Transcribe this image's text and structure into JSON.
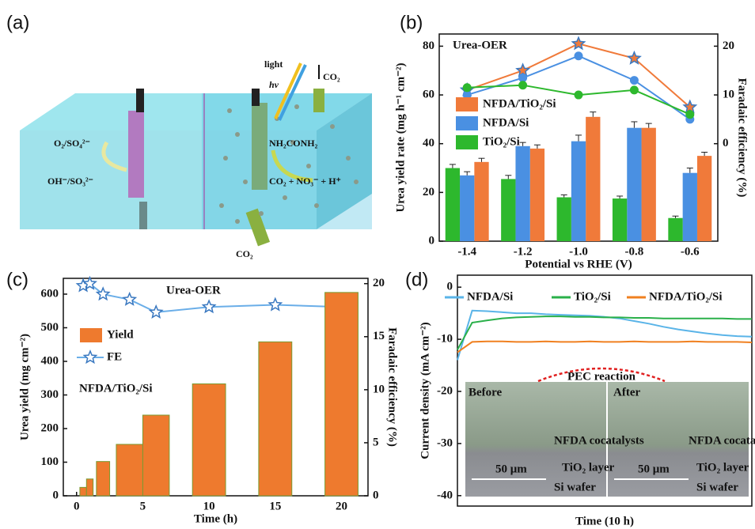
{
  "diagram": {
    "label": "(a)",
    "texts": [
      "light",
      "hv",
      "CO₂",
      "O₂/SO₄²⁻",
      "OH⁻/SO₃²⁻",
      "NH₂CONH₂",
      "CO₂ + NO₃⁻ + H⁺",
      "CO₂"
    ]
  },
  "chart_data": [
    {
      "type": "bar",
      "label": "(b)",
      "annotations": [
        "Urea-OER"
      ],
      "categories": [
        "-1.4",
        "-1.2",
        "-1.0",
        "-0.8",
        "-0.6"
      ],
      "series": [
        {
          "name": "NFDA/TiO₂/Si",
          "color": "#f07a3a",
          "values": [
            32.5,
            38,
            51,
            46.5,
            35
          ],
          "errors": [
            1.5,
            1.5,
            2,
            1.8,
            1.5
          ],
          "fe_values": [
            11,
            15,
            20.5,
            17.5,
            7.5
          ],
          "fe_marker": "star"
        },
        {
          "name": "NFDA/Si",
          "color": "#4a90e2",
          "values": [
            27,
            39,
            41,
            46.5,
            28
          ],
          "errors": [
            1.5,
            1.5,
            2.5,
            2.5,
            2
          ],
          "fe_values": [
            10,
            13.5,
            18,
            13,
            5
          ],
          "fe_marker": "circle"
        },
        {
          "name": "TiO₂/Si",
          "color": "#2db82d",
          "values": [
            30,
            25.5,
            18,
            17.5,
            9.5
          ],
          "errors": [
            1.5,
            1.5,
            1,
            1,
            0.8
          ],
          "fe_values": [
            11.5,
            12,
            10,
            11,
            6
          ],
          "fe_marker": "circle"
        }
      ],
      "ylim": [
        0,
        85
      ],
      "yticks": [
        0,
        20,
        40,
        60,
        80
      ],
      "y2lim": [
        -20,
        22.5
      ],
      "y2ticks": [
        0,
        10,
        20
      ],
      "xlabel": "Potential vs RHE (V)",
      "ylabel": "Urea yield rate (mg h⁻¹ cm⁻²)",
      "y2label": "Faradaic efficiency (%)",
      "y2color": "#a0302a"
    },
    {
      "type": "bar",
      "label": "(c)",
      "annotations": [
        "Urea-OER",
        "NFDA/TiO₂/Si"
      ],
      "x": [
        0.5,
        1,
        2,
        4,
        6,
        10,
        15,
        20
      ],
      "series": [
        {
          "name": "FE",
          "color": "#6aaee8",
          "values": [
            19.8,
            20,
            19,
            18.5,
            17.3,
            17.8,
            18,
            17.8
          ],
          "axis": "y2",
          "marker": "star"
        },
        {
          "name": "Yield",
          "color": "#ee7a2e",
          "values": [
            25,
            50,
            102,
            153,
            240,
            333,
            458,
            605
          ]
        }
      ],
      "xlim": [
        -1,
        22
      ],
      "xticks": [
        0,
        5,
        10,
        15,
        20
      ],
      "ylim": [
        0,
        647
      ],
      "yticks": [
        0,
        100,
        200,
        300,
        400,
        500,
        600
      ],
      "y2lim": [
        0,
        20.5
      ],
      "y2ticks": [
        0,
        5,
        10,
        15,
        20
      ],
      "xlabel": "Time (h)",
      "ylabel": "Urea yield (mg cm⁻²)",
      "y2label": "Faradaic efficiency (%)"
    },
    {
      "type": "line",
      "label": "(d)",
      "annotations": [
        "PEC reaction",
        "Before",
        "After",
        "NFDA cocatalysts",
        "NFDA cocatalysts",
        "TiO₂ layer",
        "TiO₂ layer",
        "Si wafer",
        "Si wafer",
        "50 μm",
        "50 μm"
      ],
      "x": [
        0,
        0.5,
        1,
        1.5,
        2,
        2.5,
        3,
        3.5,
        4,
        4.5,
        5,
        5.5,
        6,
        6.5,
        7,
        7.5,
        8,
        8.5,
        9,
        9.5,
        10
      ],
      "series": [
        {
          "name": "NFDA/Si",
          "color": "#5ab4e8",
          "values": [
            -14,
            -4.5,
            -4.6,
            -4.8,
            -5,
            -5,
            -5.2,
            -5.3,
            -5.4,
            -5.5,
            -5.7,
            -6,
            -6.5,
            -7,
            -7.6,
            -8.1,
            -8.5,
            -8.9,
            -9.2,
            -9.4,
            -9.5
          ]
        },
        {
          "name": "TiO₂/Si",
          "color": "#2ab04a",
          "values": [
            -12,
            -6.8,
            -6.4,
            -6,
            -5.8,
            -5.7,
            -5.6,
            -5.6,
            -5.7,
            -5.7,
            -5.8,
            -5.8,
            -5.9,
            -5.9,
            -6,
            -6,
            -6,
            -6,
            -6,
            -6.1,
            -6.1
          ]
        },
        {
          "name": "NFDA/TiO₂/Si",
          "color": "#f08020",
          "values": [
            -12.5,
            -10.5,
            -10.4,
            -10.4,
            -10.5,
            -10.5,
            -10.4,
            -10.5,
            -10.5,
            -10.4,
            -10.5,
            -10.5,
            -10.4,
            -10.5,
            -10.5,
            -10.5,
            -10.4,
            -10.5,
            -10.5,
            -10.5,
            -10.6
          ]
        }
      ],
      "xlim": [
        0,
        10
      ],
      "ylim": [
        -42,
        2.3
      ],
      "yticks": [
        0,
        -10,
        -20,
        -30,
        -40
      ],
      "xlabel": "Time (10 h)",
      "ylabel": "Current density (mA cm⁻²)"
    }
  ]
}
